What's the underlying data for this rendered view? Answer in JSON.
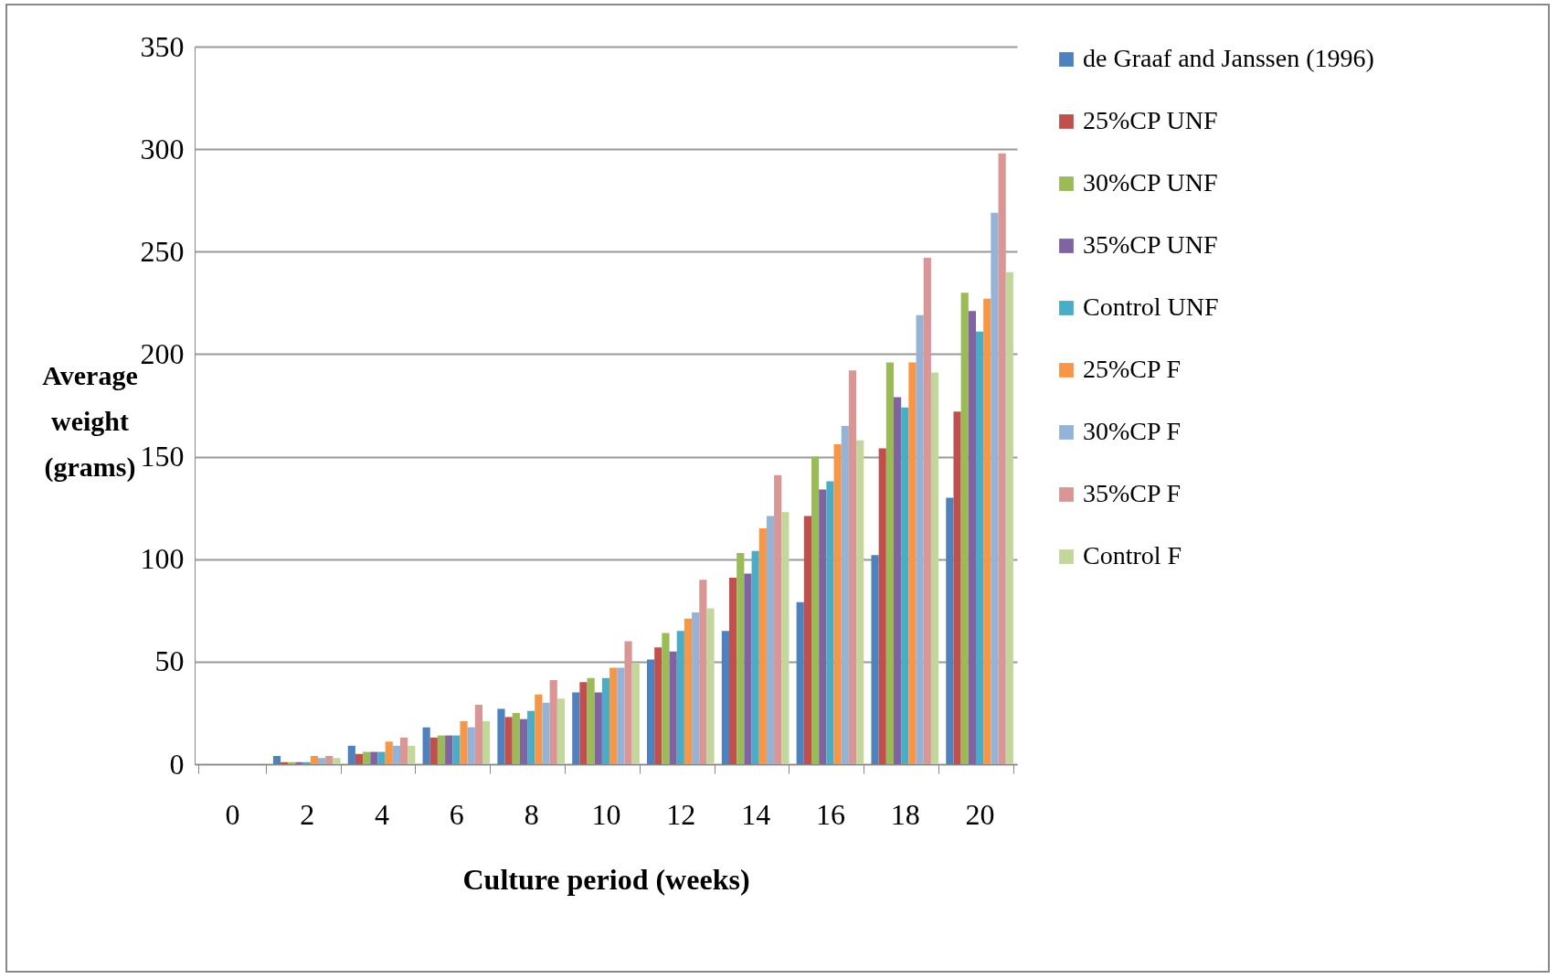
{
  "chart_data": {
    "type": "bar",
    "xlabel": "Culture period (weeks)",
    "ylabel": "Average weight (grams)",
    "categories": [
      "0",
      "2",
      "4",
      "6",
      "8",
      "10",
      "12",
      "14",
      "16",
      "18",
      "20"
    ],
    "series": [
      {
        "name": "de Graaf and Janssen (1996)",
        "color": "#4f81bd",
        "values": [
          0,
          4,
          9,
          18,
          27,
          35,
          51,
          65,
          79,
          102,
          130
        ]
      },
      {
        "name": "25%CP UNF",
        "color": "#c0504d",
        "values": [
          0,
          1,
          5,
          13,
          23,
          40,
          57,
          91,
          121,
          154,
          172
        ]
      },
      {
        "name": "30%CP UNF",
        "color": "#9bbb59",
        "values": [
          0,
          1,
          6,
          14,
          25,
          42,
          64,
          103,
          150,
          196,
          230
        ]
      },
      {
        "name": "35%CP UNF",
        "color": "#8064a2",
        "values": [
          0,
          1,
          6,
          14,
          22,
          35,
          55,
          93,
          134,
          179,
          221
        ]
      },
      {
        "name": "Control UNF",
        "color": "#4bacc6",
        "values": [
          0,
          1,
          6,
          14,
          26,
          42,
          65,
          104,
          138,
          174,
          211
        ]
      },
      {
        "name": "25%CP F",
        "color": "#f79646",
        "values": [
          0,
          4,
          11,
          21,
          34,
          47,
          71,
          115,
          156,
          196,
          227
        ]
      },
      {
        "name": "30%CP F",
        "color": "#95b3d7",
        "values": [
          0,
          3,
          9,
          18,
          30,
          47,
          74,
          121,
          165,
          219,
          269
        ]
      },
      {
        "name": "35%CP F",
        "color": "#d99694",
        "values": [
          0,
          4,
          13,
          29,
          41,
          60,
          90,
          141,
          192,
          247,
          298
        ]
      },
      {
        "name": "Control F",
        "color": "#c3d69b",
        "values": [
          0,
          3,
          9,
          21,
          32,
          49,
          76,
          123,
          158,
          191,
          240
        ]
      }
    ],
    "ylim": [
      0,
      350
    ],
    "yticks": [
      0,
      50,
      100,
      150,
      200,
      250,
      300,
      350
    ],
    "grid": "y",
    "legend": "right"
  }
}
